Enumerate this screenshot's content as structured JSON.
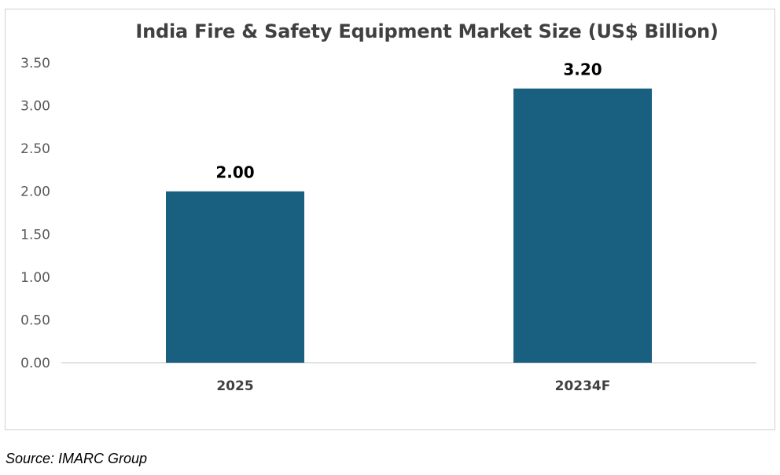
{
  "chart_data": {
    "type": "bar",
    "title": "India Fire & Safety Equipment Market Size (US$ Billion)",
    "categories": [
      "2025",
      "20234F"
    ],
    "values": [
      2.0,
      3.2
    ],
    "data_labels": [
      "2.00",
      "3.20"
    ],
    "ylim": [
      0,
      3.5
    ],
    "y_ticks": [
      "0.00",
      "0.50",
      "1.00",
      "1.50",
      "2.00",
      "2.50",
      "3.00",
      "3.50"
    ],
    "grid": false,
    "legend": "none",
    "bar_color": "#195f80"
  },
  "source": "Source: IMARC Group"
}
